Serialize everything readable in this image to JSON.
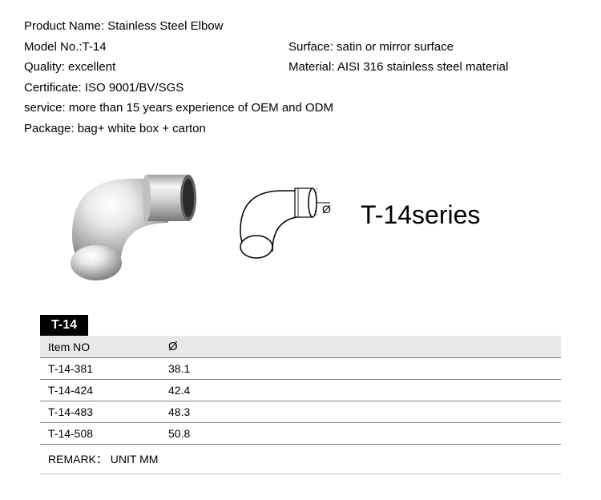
{
  "specs": {
    "product_name_label": "Product Name:",
    "product_name_value": "Stainless Steel Elbow",
    "model_no_label": "Model No.:",
    "model_no_value": "T-14",
    "surface_label": "Surface:",
    "surface_value": "satin or mirror surface",
    "quality_label": "Quality:",
    "quality_value": "excellent",
    "material_label": "Material:",
    "material_value": "AISI 316 stainless steel material",
    "certificate_label": "Certificate:",
    "certificate_value": "ISO 9001/BV/SGS",
    "service_label": "service:",
    "service_value": "more than 15 years experience of OEM and ODM",
    "package_label": "Package:",
    "package_value": "bag+ white box + carton"
  },
  "series_label": "T-14series",
  "table": {
    "title": "T-14",
    "col_item": "Item NO",
    "col_diameter": "Ø",
    "rows": [
      {
        "item": "T-14-381",
        "dia": "38.1"
      },
      {
        "item": "T-14-424",
        "dia": "42.4"
      },
      {
        "item": "T-14-483",
        "dia": "48.3"
      },
      {
        "item": "T-14-508",
        "dia": "50.8"
      }
    ],
    "remark": "REMARK： UNIT MM"
  },
  "colors": {
    "text": "#000000",
    "bg": "#ffffff",
    "header_row_bg": "#e8e8e8",
    "title_bg": "#000000",
    "title_fg": "#ffffff",
    "row_border": "#808080"
  },
  "diagram": {
    "stroke": "#000000",
    "fill": "#ffffff",
    "diameter_symbol": "Ø"
  },
  "photo": {
    "body_light": "#f0f0f0",
    "body_mid": "#c8c8c8",
    "body_dark": "#888888",
    "rim": "#707070",
    "inner": "#3a3a3a"
  }
}
